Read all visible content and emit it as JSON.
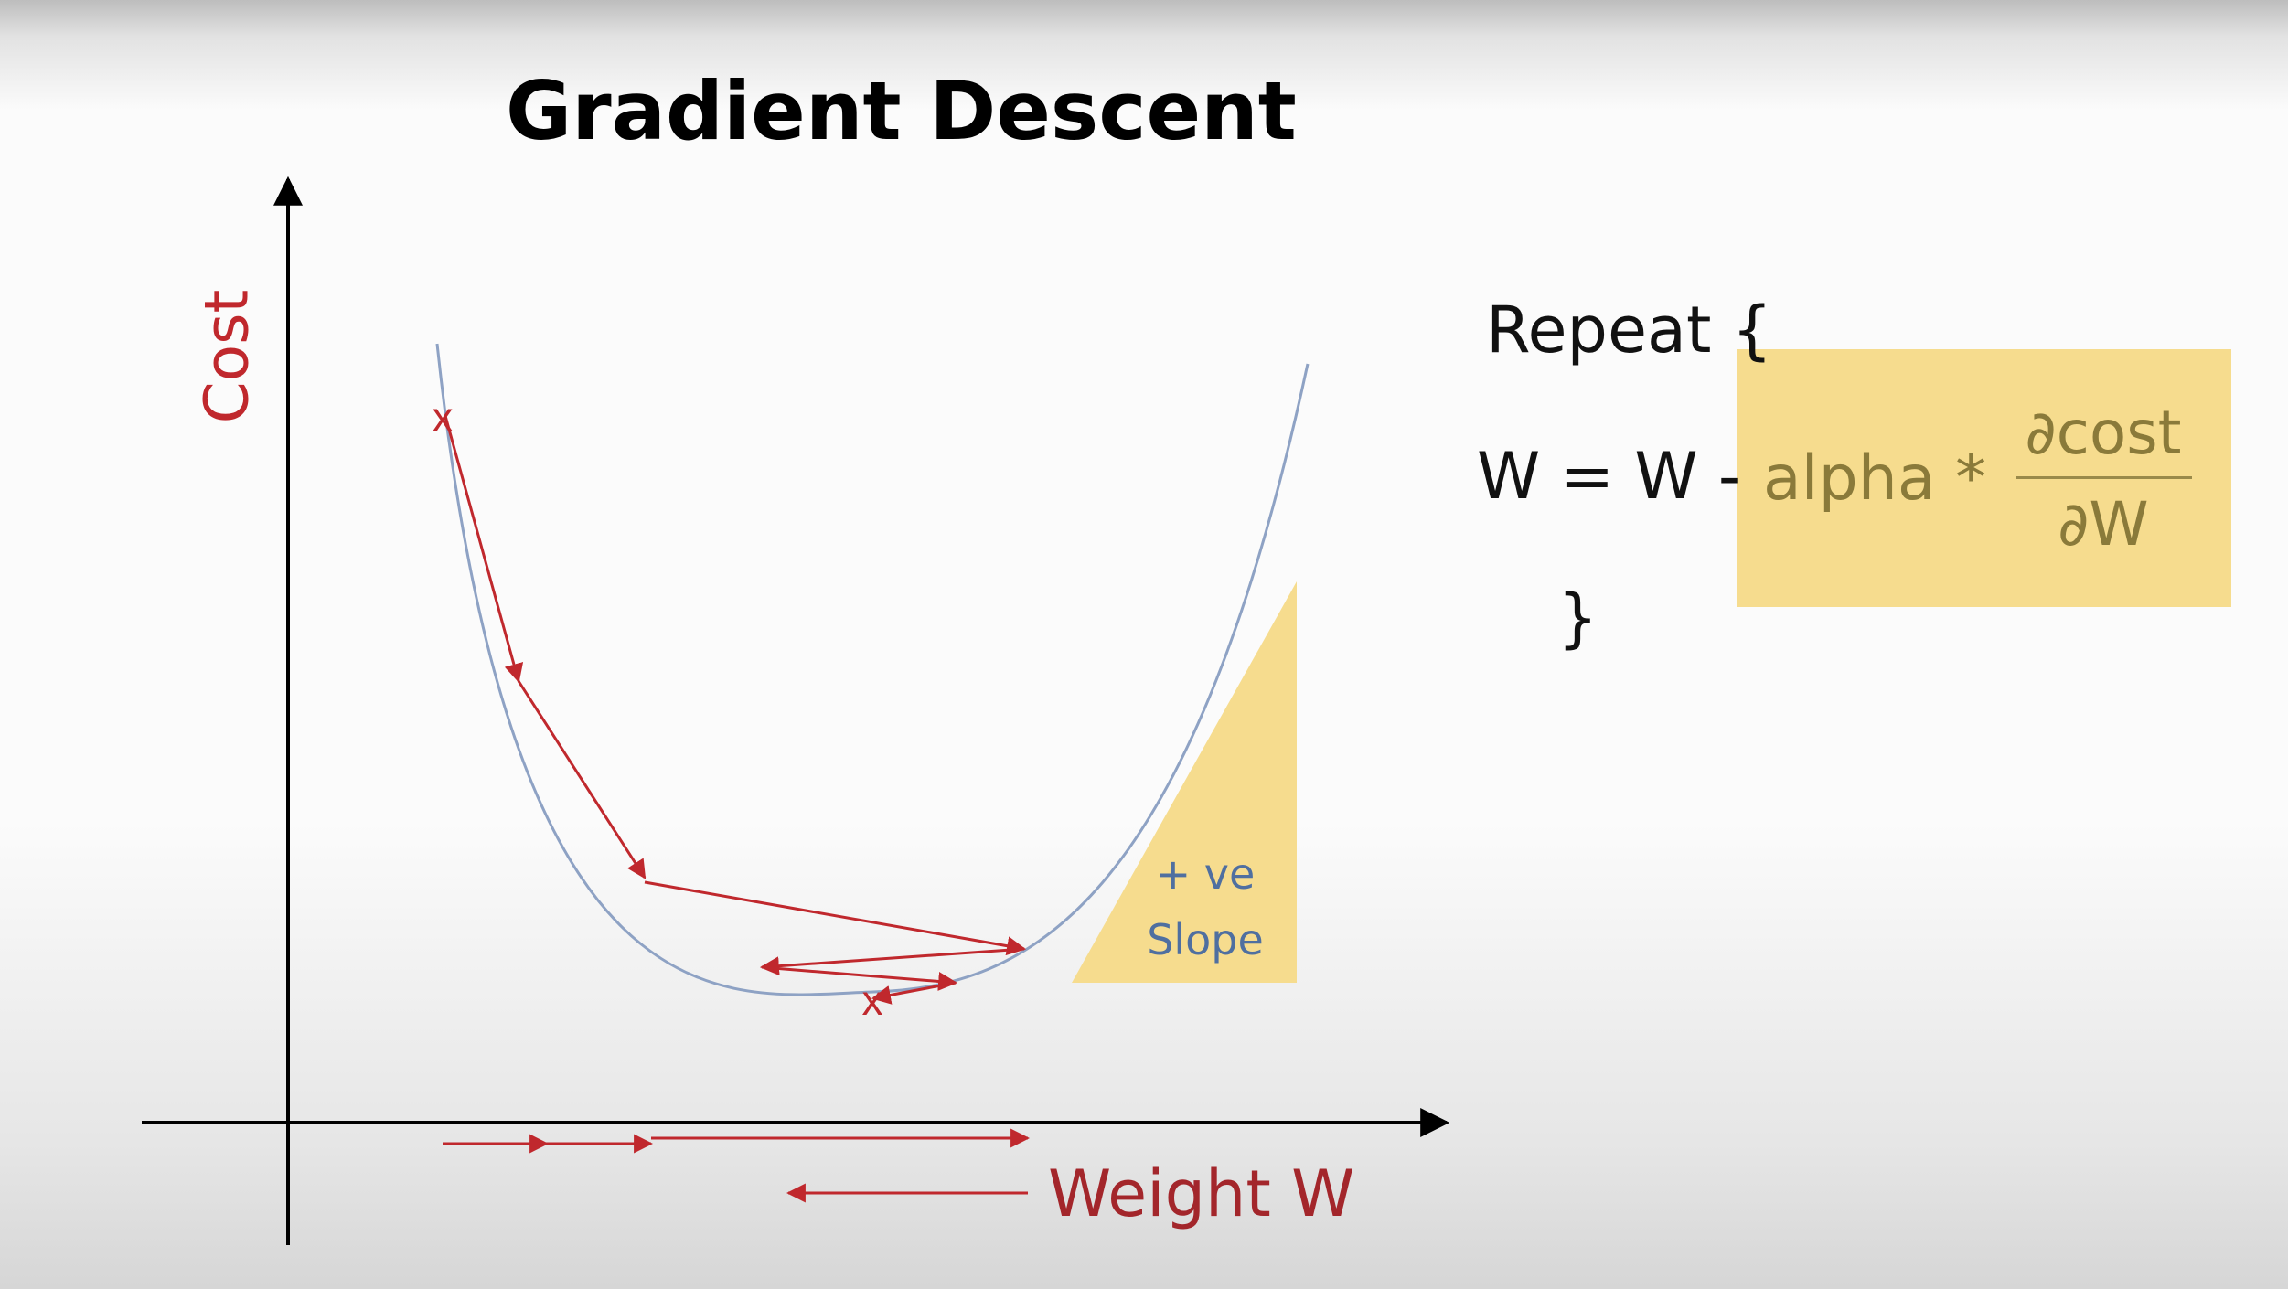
{
  "title": "Gradient Descent",
  "axes": {
    "y_label": "Cost",
    "x_label": "Weight W"
  },
  "slope_annotation": {
    "line1": "+ ve",
    "line2": "Slope"
  },
  "markers": {
    "start": "x",
    "end": "x"
  },
  "formula": {
    "repeat": "Repeat {",
    "lhs": "W = W -",
    "alpha": "alpha *",
    "numerator": "∂cost",
    "denominator": "∂W",
    "close": "}"
  },
  "colors": {
    "title": "#000000",
    "red": "#c0282d",
    "curve": "#8ea2c4",
    "highlight": "#f6dc8e",
    "highlight_text": "#8a7a3a",
    "slope_text": "#4f6fa0"
  }
}
